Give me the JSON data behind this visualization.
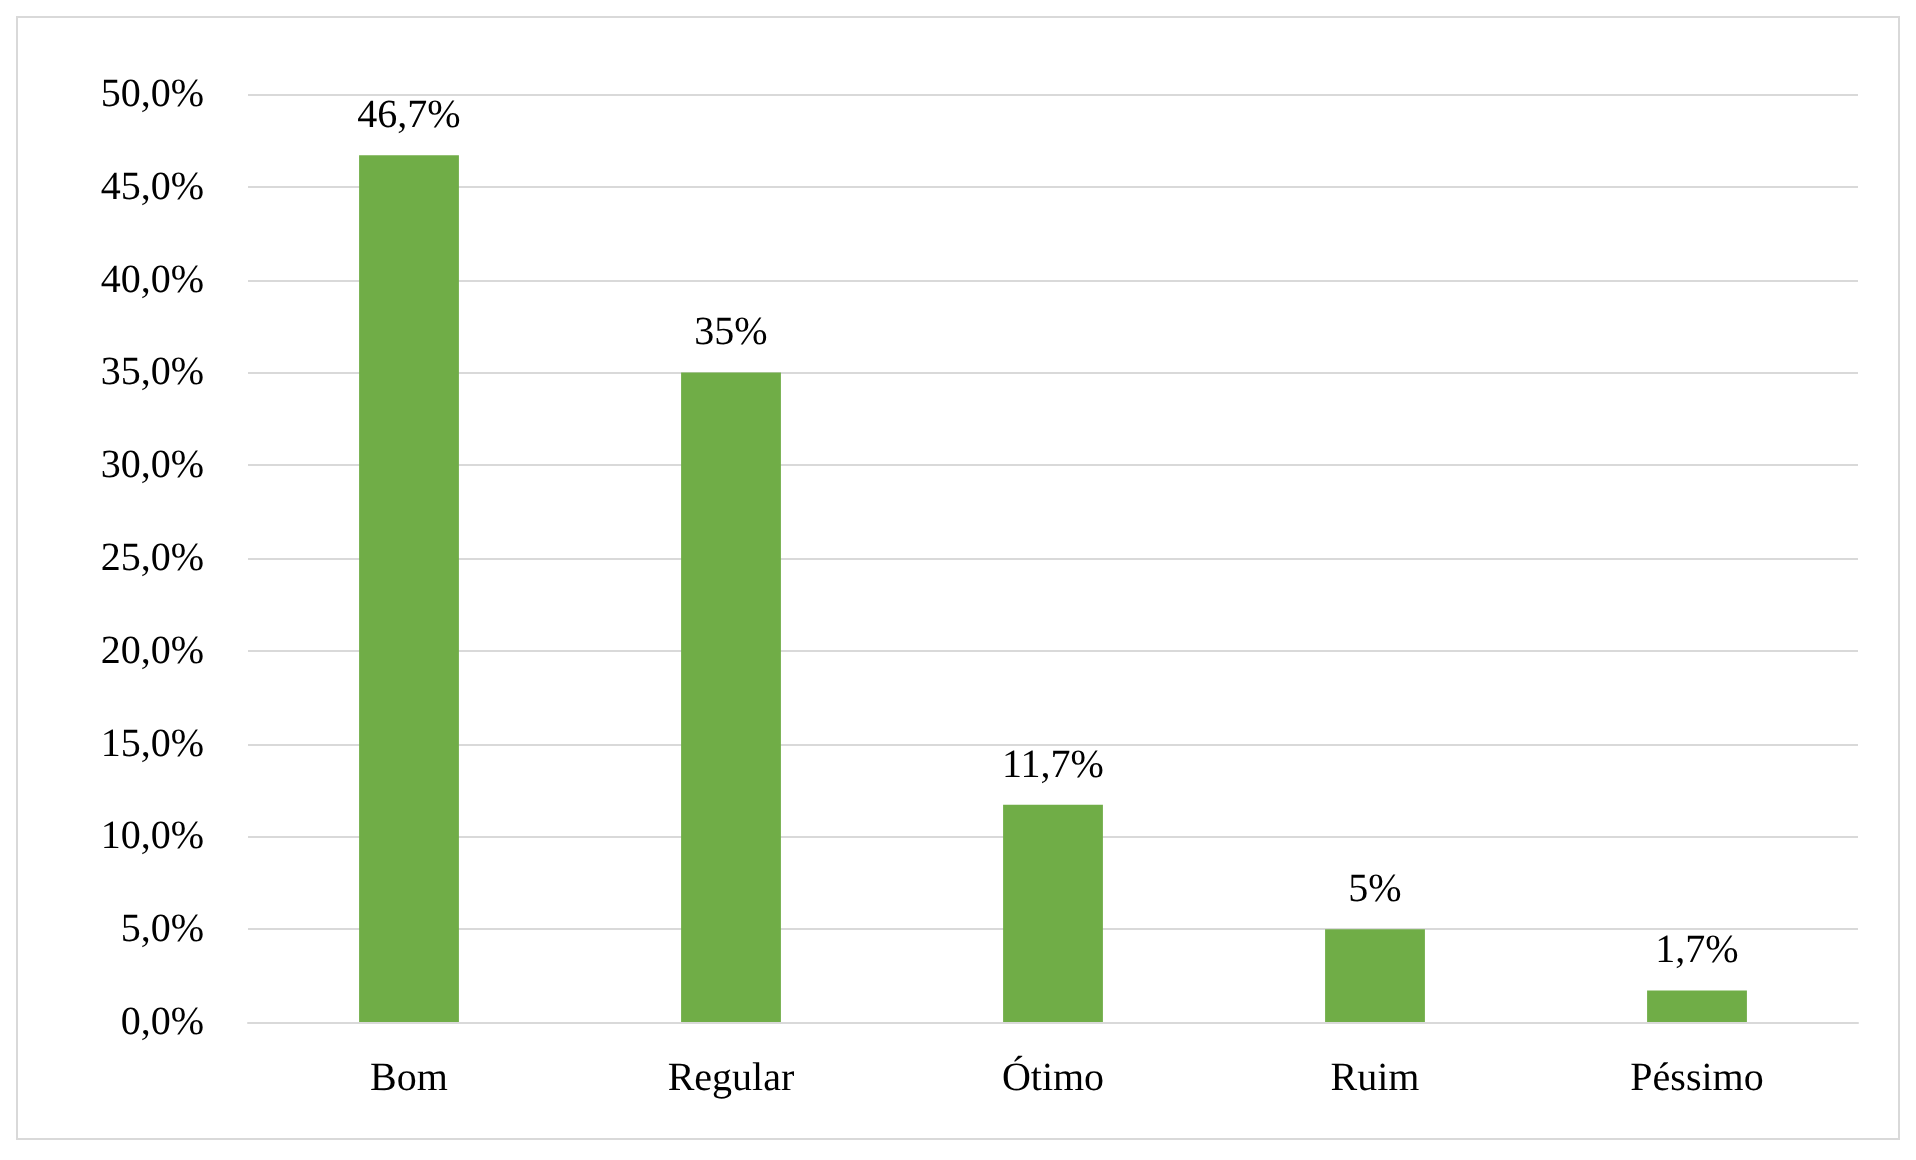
{
  "chart_data": {
    "type": "bar",
    "categories": [
      "Bom",
      "Regular",
      "Ótimo",
      "Ruim",
      "Péssimo"
    ],
    "values": [
      46.7,
      35,
      11.7,
      5,
      1.7
    ],
    "value_labels": [
      "46,7%",
      "35%",
      "11,7%",
      "5%",
      "1,7%"
    ],
    "color": "#70ad47",
    "ylim": [
      0,
      50
    ],
    "yticks": [
      {
        "value": 0,
        "label": "0,0%"
      },
      {
        "value": 5,
        "label": "5,0%"
      },
      {
        "value": 10,
        "label": "10,0%"
      },
      {
        "value": 15,
        "label": "15,0%"
      },
      {
        "value": 20,
        "label": "20,0%"
      },
      {
        "value": 25,
        "label": "25,0%"
      },
      {
        "value": 30,
        "label": "30,0%"
      },
      {
        "value": 35,
        "label": "35,0%"
      },
      {
        "value": 40,
        "label": "40,0%"
      },
      {
        "value": 45,
        "label": "45,0%"
      },
      {
        "value": 50,
        "label": "50,0%"
      }
    ],
    "grid": "y"
  }
}
